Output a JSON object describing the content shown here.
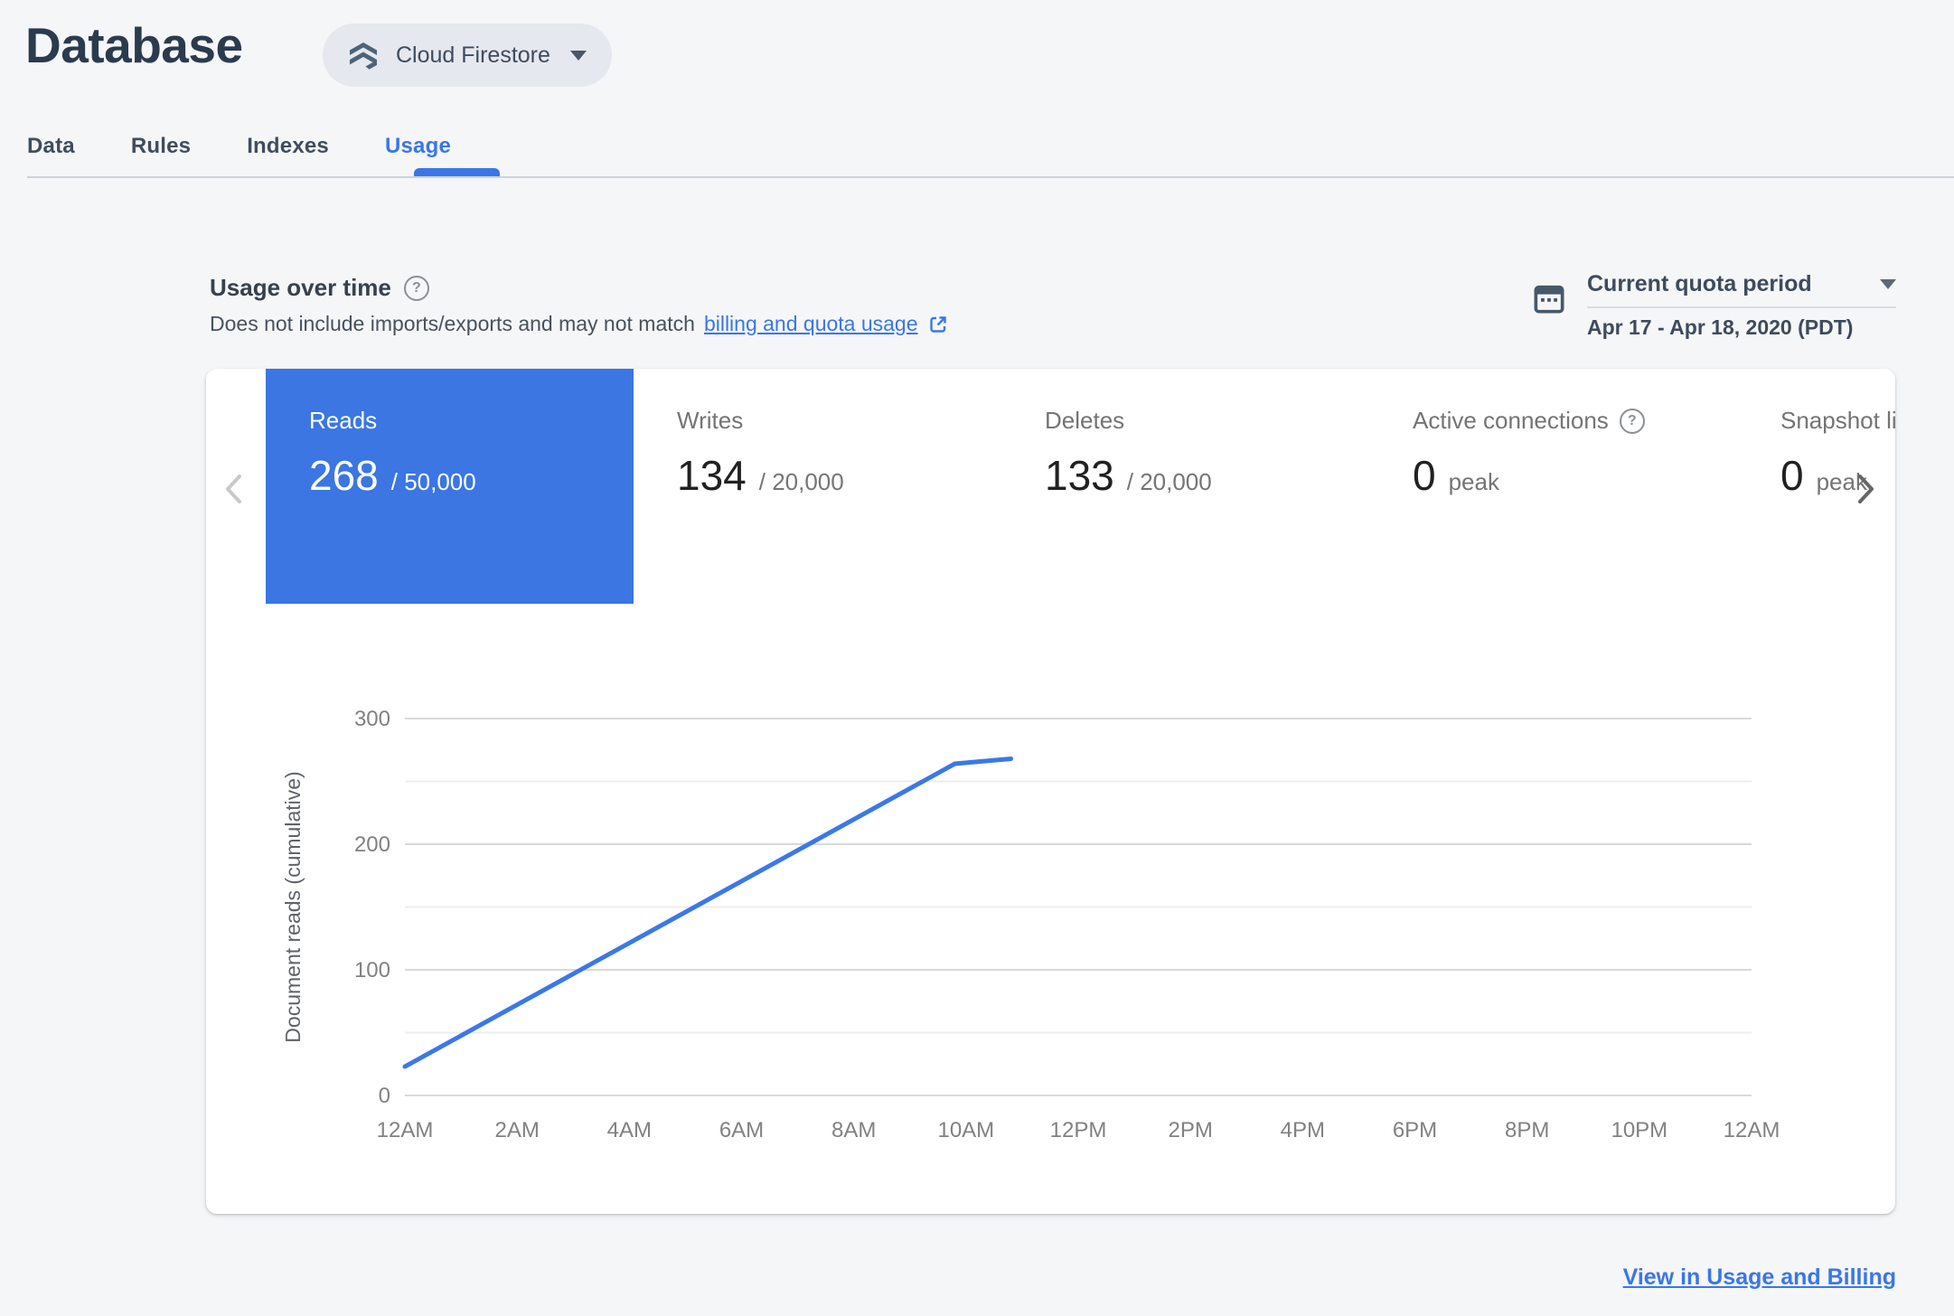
{
  "header": {
    "title": "Database",
    "product_selector": {
      "label": "Cloud Firestore"
    }
  },
  "tabs": [
    {
      "label": "Data",
      "active": false
    },
    {
      "label": "Rules",
      "active": false
    },
    {
      "label": "Indexes",
      "active": false
    },
    {
      "label": "Usage",
      "active": true
    }
  ],
  "section": {
    "title": "Usage over time",
    "subtitle_prefix": "Does not include imports/exports and may not match",
    "subtitle_link": "billing and quota usage",
    "quota": {
      "label": "Current quota period",
      "range": "Apr 17 - Apr 18, 2020 (PDT)"
    }
  },
  "cards": [
    {
      "label": "Reads",
      "value": "268",
      "suffix": "/ 50,000",
      "selected": true,
      "help": false
    },
    {
      "label": "Writes",
      "value": "134",
      "suffix": "/ 20,000",
      "selected": false,
      "help": false
    },
    {
      "label": "Deletes",
      "value": "133",
      "suffix": "/ 20,000",
      "selected": false,
      "help": false
    },
    {
      "label": "Active connections",
      "value": "0",
      "suffix": "peak",
      "selected": false,
      "help": true
    },
    {
      "label": "Snapshot listeners",
      "value": "0",
      "suffix": "peak",
      "selected": false,
      "help": false
    }
  ],
  "chart_data": {
    "type": "line",
    "title": "",
    "xlabel": "",
    "ylabel": "Document reads (cumulative)",
    "xlim": [
      0,
      24
    ],
    "ylim": [
      0,
      300
    ],
    "x_ticks": [
      {
        "hour": 0,
        "label": "12AM"
      },
      {
        "hour": 2,
        "label": "2AM"
      },
      {
        "hour": 4,
        "label": "4AM"
      },
      {
        "hour": 6,
        "label": "6AM"
      },
      {
        "hour": 8,
        "label": "8AM"
      },
      {
        "hour": 10,
        "label": "10AM"
      },
      {
        "hour": 12,
        "label": "12PM"
      },
      {
        "hour": 14,
        "label": "2PM"
      },
      {
        "hour": 16,
        "label": "4PM"
      },
      {
        "hour": 18,
        "label": "6PM"
      },
      {
        "hour": 20,
        "label": "8PM"
      },
      {
        "hour": 22,
        "label": "10PM"
      },
      {
        "hour": 24,
        "label": "12AM"
      }
    ],
    "y_major_ticks": [
      0,
      100,
      200,
      300
    ],
    "y_minor_gridlines": [
      50,
      150,
      250
    ],
    "grid": true,
    "legend": "none",
    "series": [
      {
        "name": "Reads (cumulative)",
        "color": "#3b78e8",
        "points": [
          [
            0,
            23
          ],
          [
            9.8,
            264
          ],
          [
            10.8,
            268
          ]
        ]
      }
    ]
  },
  "footer": {
    "link": "View in Usage and Billing"
  },
  "colors": {
    "accent_blue": "#3a76e8",
    "selected_card_blue": "#3b76e2",
    "chart_line_blue": "#3b78e8",
    "page_bg": "#f5f6f8",
    "panel_bg": "#ffffff",
    "title_text": "#2b3b4e",
    "tab_text": "#3f4d5f",
    "muted_text": "#757575",
    "value_text": "#212121",
    "gridline_major": "#d9d9d9",
    "gridline_minor": "#eeeeee",
    "tick_label": "#818181",
    "divider": "#ccd3da",
    "slate_icon": "#46586c"
  }
}
